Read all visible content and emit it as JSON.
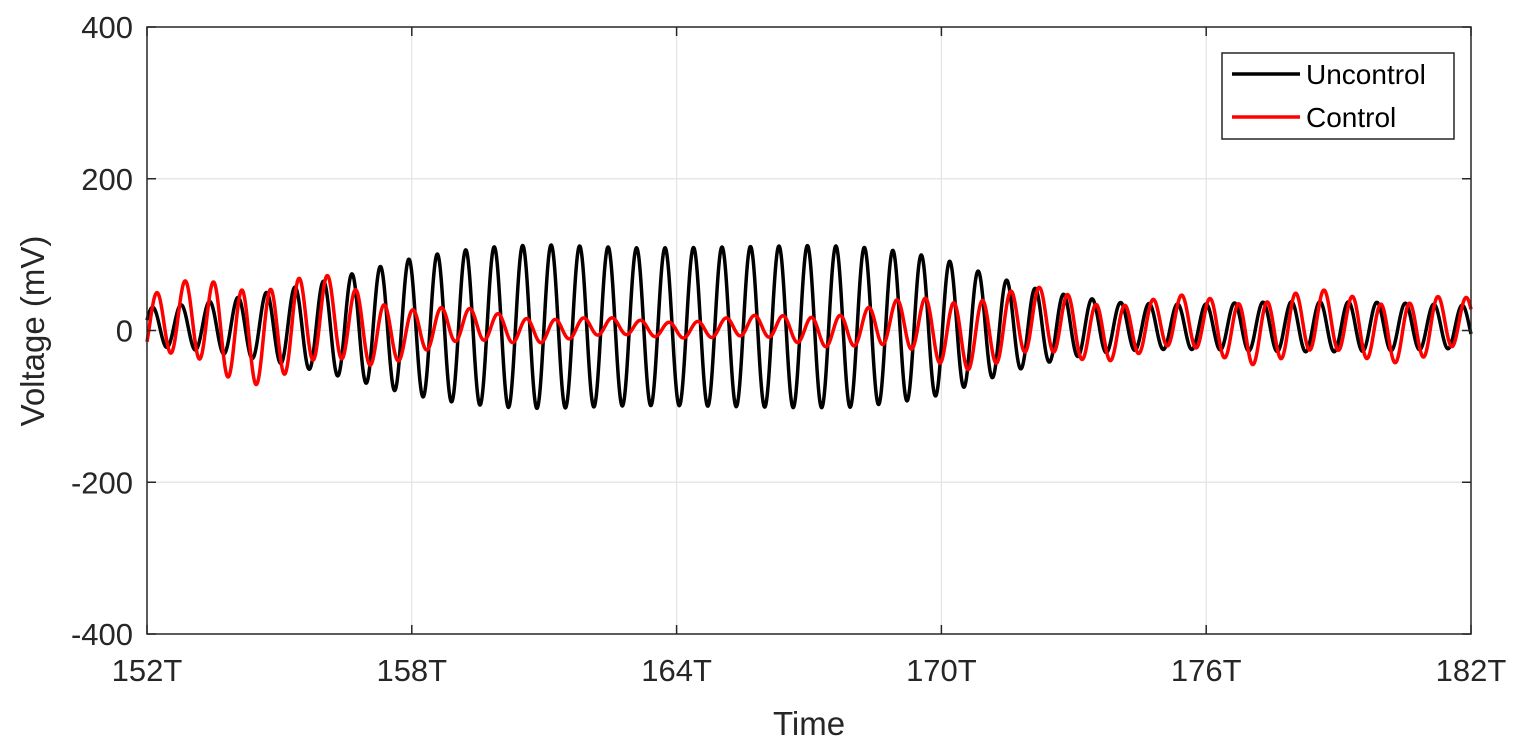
{
  "chart_data": {
    "type": "line",
    "xlabel": "Time",
    "ylabel": "Voltage (mV)",
    "xunit_suffix": "T",
    "xlim": [
      152,
      182
    ],
    "ylim": [
      -400,
      400
    ],
    "xticks": [
      152,
      158,
      164,
      170,
      176,
      182
    ],
    "xtick_labels": [
      "152T",
      "158T",
      "164T",
      "170T",
      "176T",
      "182T"
    ],
    "yticks": [
      400,
      200,
      0,
      -200,
      -400
    ],
    "ytick_labels": [
      "400",
      "200",
      "0",
      "-200",
      "-400"
    ],
    "grid": true,
    "legend_position": "top-right",
    "series": [
      {
        "name": "Uncontrol",
        "color": "#000000",
        "description_points": {
          "x": [
            152,
            153,
            154,
            155,
            156,
            157,
            158,
            159,
            160,
            161,
            162,
            163,
            164,
            165,
            166,
            167,
            168,
            169,
            170,
            171,
            172,
            173,
            174,
            175,
            176,
            177,
            178,
            179,
            180,
            181,
            182
          ],
          "amplitude": [
            25,
            30,
            38,
            48,
            60,
            75,
            90,
            100,
            106,
            108,
            106,
            104,
            104,
            105,
            106,
            107,
            106,
            100,
            90,
            70,
            52,
            40,
            32,
            30,
            30,
            32,
            33,
            33,
            32,
            30,
            28
          ],
          "offset": [
            5,
            5,
            5,
            5,
            5,
            5,
            5,
            5,
            5,
            5,
            5,
            5,
            5,
            5,
            5,
            5,
            5,
            5,
            5,
            5,
            5,
            5,
            5,
            5,
            5,
            5,
            5,
            5,
            5,
            5,
            5
          ]
        },
        "oscillations_per_T": 1.55
      },
      {
        "name": "Control",
        "color": "#ff0000",
        "description_points": {
          "x": [
            152,
            153,
            154,
            155,
            156,
            157,
            158,
            159,
            160,
            161,
            162,
            163,
            164,
            165,
            166,
            167,
            168,
            169,
            170,
            171,
            172,
            173,
            174,
            175,
            176,
            177,
            178,
            179,
            180,
            181,
            182
          ],
          "amplitude": [
            38,
            50,
            62,
            60,
            55,
            45,
            30,
            22,
            18,
            15,
            12,
            10,
            10,
            12,
            14,
            18,
            22,
            30,
            42,
            45,
            42,
            40,
            35,
            32,
            35,
            40,
            40,
            38,
            38,
            38,
            30
          ],
          "offset": [
            5,
            5,
            5,
            5,
            5,
            3,
            3,
            3,
            3,
            3,
            3,
            3,
            3,
            3,
            3,
            3,
            3,
            3,
            3,
            3,
            5,
            5,
            5,
            5,
            5,
            5,
            5,
            5,
            5,
            5,
            5
          ]
        },
        "oscillations_per_T": 1.55
      }
    ]
  }
}
